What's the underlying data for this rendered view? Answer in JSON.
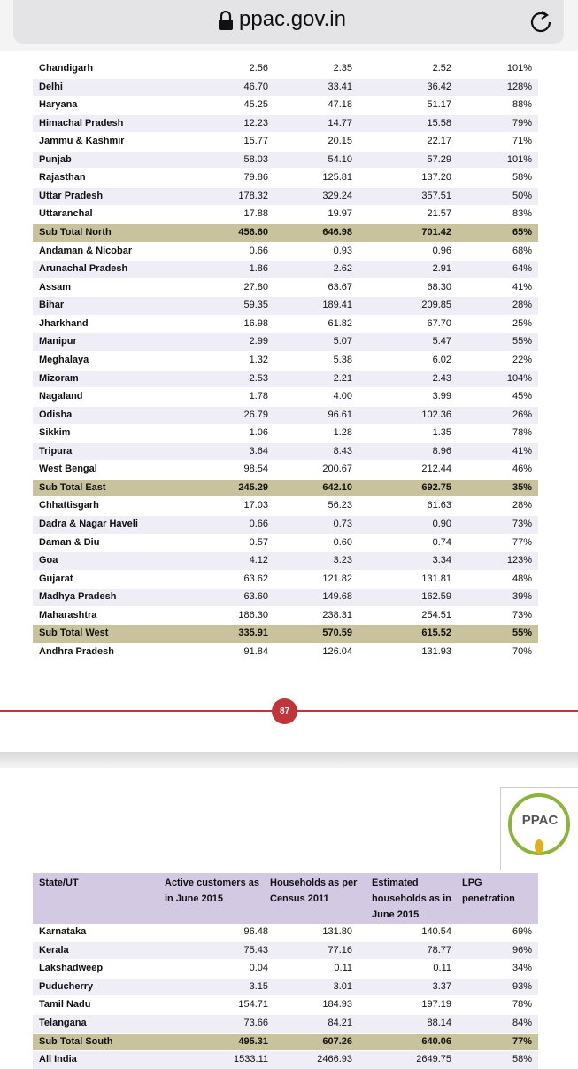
{
  "browser": {
    "url": "ppac.gov.in"
  },
  "table1": {
    "sections": [
      {
        "rows": [
          [
            "Chandigarh",
            "2.56",
            "2.35",
            "2.52",
            "101%"
          ],
          [
            "Delhi",
            "46.70",
            "33.41",
            "36.42",
            "128%"
          ],
          [
            "Haryana",
            "45.25",
            "47.18",
            "51.17",
            "88%"
          ],
          [
            "Himachal Pradesh",
            "12.23",
            "14.77",
            "15.58",
            "79%"
          ],
          [
            "Jammu & Kashmir",
            "15.77",
            "20.15",
            "22.17",
            "71%"
          ],
          [
            "Punjab",
            "58.03",
            "54.10",
            "57.29",
            "101%"
          ],
          [
            "Rajasthan",
            "79.86",
            "125.81",
            "137.20",
            "58%"
          ],
          [
            "Uttar Pradesh",
            "178.32",
            "329.24",
            "357.51",
            "50%"
          ],
          [
            "Uttaranchal",
            "17.88",
            "19.97",
            "21.57",
            "83%"
          ]
        ],
        "total": [
          "Sub Total North",
          "456.60",
          "646.98",
          "701.42",
          "65%"
        ]
      },
      {
        "rows": [
          [
            "Andaman & Nicobar",
            "0.66",
            "0.93",
            "0.96",
            "68%"
          ],
          [
            "Arunachal Pradesh",
            "1.86",
            "2.62",
            "2.91",
            "64%"
          ],
          [
            "Assam",
            "27.80",
            "63.67",
            "68.30",
            "41%"
          ],
          [
            "Bihar",
            "59.35",
            "189.41",
            "209.85",
            "28%"
          ],
          [
            "Jharkhand",
            "16.98",
            "61.82",
            "67.70",
            "25%"
          ],
          [
            "Manipur",
            "2.99",
            "5.07",
            "5.47",
            "55%"
          ],
          [
            "Meghalaya",
            "1.32",
            "5.38",
            "6.02",
            "22%"
          ],
          [
            "Mizoram",
            "2.53",
            "2.21",
            "2.43",
            "104%"
          ],
          [
            "Nagaland",
            "1.78",
            "4.00",
            "3.99",
            "45%"
          ],
          [
            "Odisha",
            "26.79",
            "96.61",
            "102.36",
            "26%"
          ],
          [
            "Sikkim",
            "1.06",
            "1.28",
            "1.35",
            "78%"
          ],
          [
            "Tripura",
            "3.64",
            "8.43",
            "8.96",
            "41%"
          ],
          [
            "West Bengal",
            "98.54",
            "200.67",
            "212.44",
            "46%"
          ]
        ],
        "total": [
          "Sub Total East",
          "245.29",
          "642.10",
          "692.75",
          "35%"
        ]
      },
      {
        "rows": [
          [
            "Chhattisgarh",
            "17.03",
            "56.23",
            "61.63",
            "28%"
          ],
          [
            "Dadra & Nagar Haveli",
            "0.66",
            "0.73",
            "0.90",
            "73%"
          ],
          [
            "Daman & Diu",
            "0.57",
            "0.60",
            "0.74",
            "77%"
          ],
          [
            "Goa",
            "4.12",
            "3.23",
            "3.34",
            "123%"
          ],
          [
            "Gujarat",
            "63.62",
            "121.82",
            "131.81",
            "48%"
          ],
          [
            "Madhya Pradesh",
            "63.60",
            "149.68",
            "162.59",
            "39%"
          ],
          [
            "Maharashtra",
            "186.30",
            "238.31",
            "254.51",
            "73%"
          ]
        ],
        "total": [
          "Sub Total West",
          "335.91",
          "570.59",
          "615.52",
          "55%"
        ]
      },
      {
        "rows": [
          [
            "Andhra Pradesh",
            "91.84",
            "126.04",
            "131.93",
            "70%"
          ]
        ]
      }
    ]
  },
  "page_number": "87",
  "logo": {
    "text": "PPAC"
  },
  "table2": {
    "header": [
      "State/UT",
      "Active customers as in June 2015",
      "Households as per Census 2011",
      "Estimated households as in June 2015",
      "LPG penetration"
    ],
    "sections": [
      {
        "rows": [
          [
            "Karnataka",
            "96.48",
            "131.80",
            "140.54",
            "69%"
          ],
          [
            "Kerala",
            "75.43",
            "77.16",
            "78.77",
            "96%"
          ],
          [
            "Lakshadweep",
            "0.04",
            "0.11",
            "0.11",
            "34%"
          ],
          [
            "Puducherry",
            "3.15",
            "3.01",
            "3.37",
            "93%"
          ],
          [
            "Tamil Nadu",
            "154.71",
            "184.93",
            "197.19",
            "78%"
          ],
          [
            "Telangana",
            "73.66",
            "84.21",
            "88.14",
            "84%"
          ]
        ],
        "total": [
          "Sub Total South",
          "495.31",
          "607.26",
          "640.06",
          "77%"
        ]
      },
      {
        "rows": [
          [
            "All India",
            "1533.11",
            "2466.93",
            "2649.75",
            "58%"
          ]
        ]
      }
    ]
  }
}
